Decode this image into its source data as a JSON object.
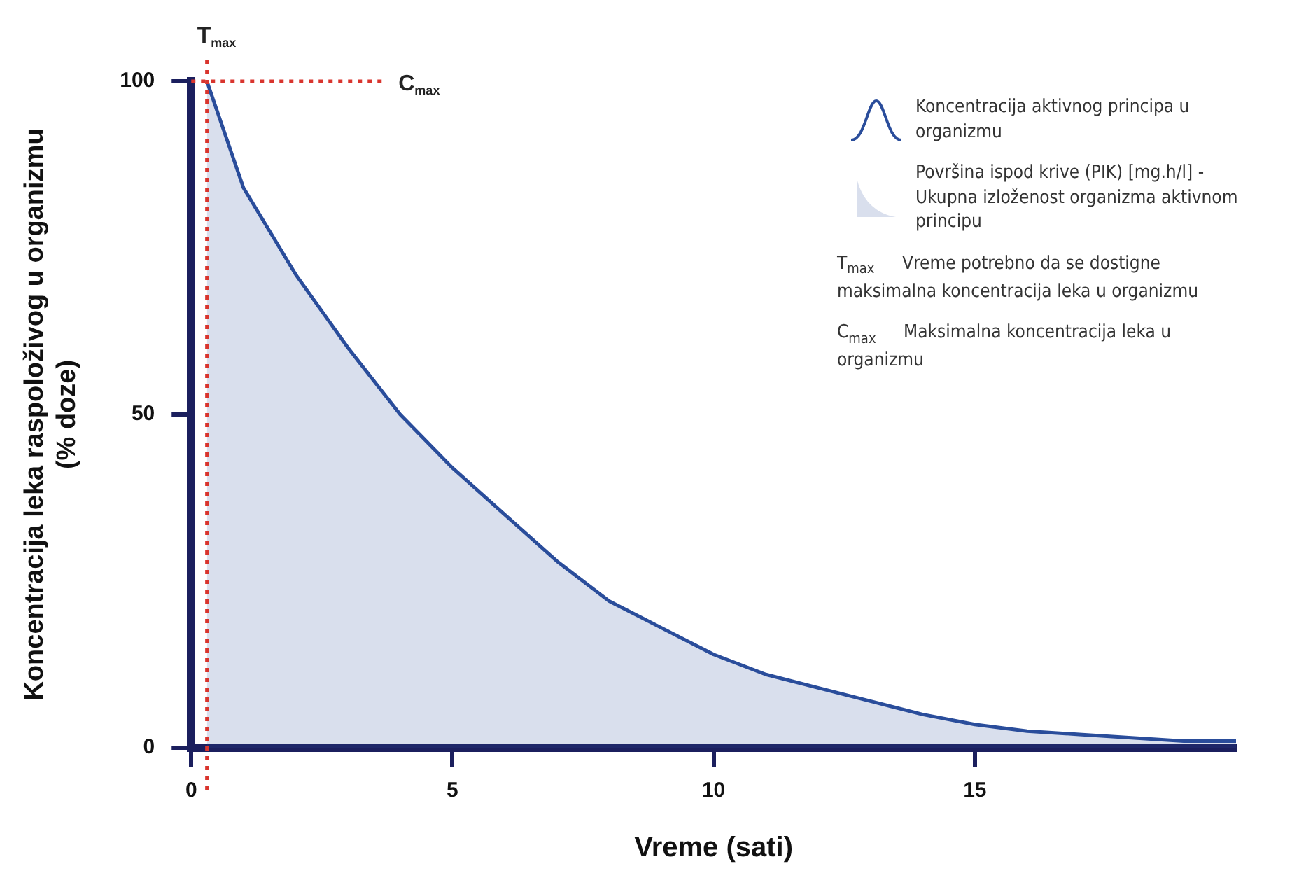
{
  "chart_data": {
    "type": "area",
    "xlabel": "Vreme (sati)",
    "ylabel": "Koncentracija leka raspoloživog u organizmu (% doze)",
    "x": [
      0.3,
      1,
      2,
      3,
      4,
      5,
      6,
      7,
      8,
      9,
      10,
      11,
      12,
      13,
      14,
      15,
      16,
      17,
      18,
      19,
      20
    ],
    "series": [
      {
        "name": "Koncentracija aktivnog principa u organizmu",
        "color": "#2a4d9b",
        "values": [
          100,
          84,
          71,
          60,
          50,
          42,
          35,
          28,
          22,
          18,
          14,
          11,
          9,
          7,
          5,
          3.5,
          2.5,
          2,
          1.5,
          1,
          1
        ]
      }
    ],
    "xlim": [
      0,
      20
    ],
    "xticks": [
      0,
      5,
      10,
      15
    ],
    "ylim": [
      0,
      100
    ],
    "yticks": [
      0,
      50,
      100
    ],
    "ref_lines": [
      {
        "axis": "x",
        "value": 0.3,
        "label": "T$_{max}$",
        "color": "#d9352e",
        "line_style": "dotted"
      },
      {
        "axis": "y",
        "value": 100,
        "label": "C$_{max}$",
        "color": "#d9352e",
        "line_style": "dotted"
      }
    ],
    "annotations": [
      "Površina ispod krive (PIK) [mg.h/l] - Ukupna izloženost organizma aktivnom principu",
      "T$_{max}$ Vreme potrebno da se dostigne maksimalna koncentracija leka u organizmu",
      "C$_{max}$ Maksimalna koncentracija leka u organizmu"
    ],
    "legend": "top right",
    "grid": false,
    "marker": "none"
  }
}
